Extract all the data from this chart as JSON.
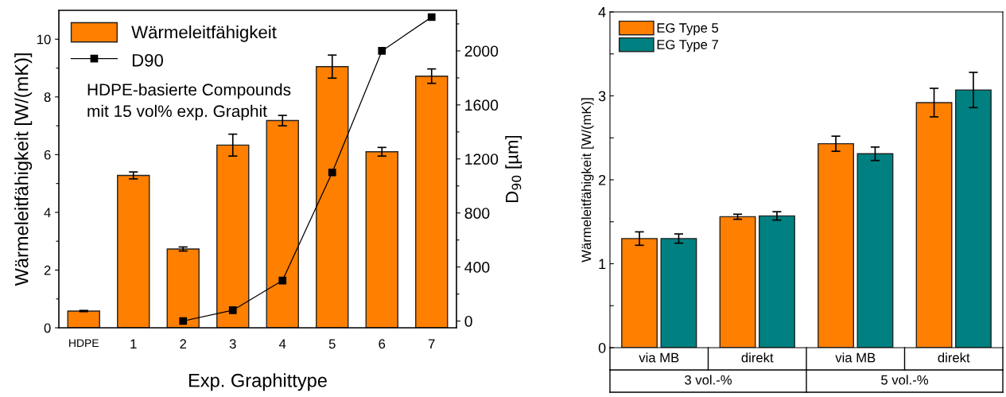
{
  "chart_data": [
    {
      "type": "bar",
      "xlabel": "Exp. Graphittype",
      "ylabel": "Wärmeleitfähigkeit [W/(mK)]",
      "y2label": "D$_{90}$ [µm]",
      "categories": [
        "HDPE",
        "1",
        "2",
        "3",
        "4",
        "5",
        "6",
        "7"
      ],
      "series": [
        {
          "name": "Wärmeleitfähigkeit",
          "type": "bar",
          "color": "#ff7f00",
          "values": [
            0.58,
            5.28,
            2.73,
            6.33,
            7.18,
            9.05,
            6.1,
            8.72
          ],
          "errors": [
            0.02,
            0.12,
            0.07,
            0.38,
            0.18,
            0.4,
            0.15,
            0.25
          ]
        },
        {
          "name": "D90",
          "type": "line",
          "axis": "y2",
          "color": "#000000",
          "marker": "square",
          "values": [
            null,
            null,
            0,
            80,
            300,
            1100,
            2000,
            2250
          ]
        }
      ],
      "ylim": [
        0,
        11
      ],
      "yticks": [
        0,
        {
          "value": 1,
          "label": null
        },
        2,
        {
          "value": 3,
          "label": null
        },
        4,
        {
          "value": 5,
          "label": null
        },
        6,
        {
          "value": 7,
          "label": null
        },
        8,
        {
          "value": 9,
          "label": null
        },
        10
      ],
      "y2lim": [
        -50,
        2300
      ],
      "y2ticks": [
        0,
        {
          "value": 200,
          "label": null
        },
        400,
        {
          "value": 600,
          "label": null
        },
        800,
        {
          "value": 1000,
          "label": null
        },
        1200,
        {
          "value": 1400,
          "label": null
        },
        1600,
        {
          "value": 1800,
          "label": null
        },
        2000,
        {
          "value": 2200,
          "label": null
        }
      ],
      "annotations": [
        "HDPE-basierte Compounds\nmit 15 vol% exp. Graphit"
      ],
      "legend": "top left",
      "grid": false
    },
    {
      "type": "bar",
      "ylabel": "Wärmeleitfähigkeit [W/(mK)]",
      "categories": [
        "via MB",
        "direkt",
        "via MB",
        "direkt"
      ],
      "series": [
        {
          "name": "EG Type 5",
          "color": "#ff7f00",
          "values": [
            1.3,
            1.56,
            2.43,
            2.92
          ],
          "errors": [
            0.08,
            0.03,
            0.09,
            0.17
          ]
        },
        {
          "name": "EG Type 7",
          "color": "#008080",
          "values": [
            1.3,
            1.57,
            2.31,
            3.07
          ],
          "errors": [
            0.055,
            0.05,
            0.08,
            0.21
          ]
        }
      ],
      "ylim": [
        0,
        4
      ],
      "yticks": [
        0,
        {
          "value": 0.5,
          "label": null
        },
        1,
        {
          "value": 1.5,
          "label": null
        },
        2,
        {
          "value": 2.5,
          "label": null
        },
        3,
        {
          "value": 3.5,
          "label": null
        },
        4
      ],
      "annotations": [
        "3 vol.-%",
        "5 vol.-%"
      ],
      "legend": "top left",
      "grid": false
    }
  ]
}
